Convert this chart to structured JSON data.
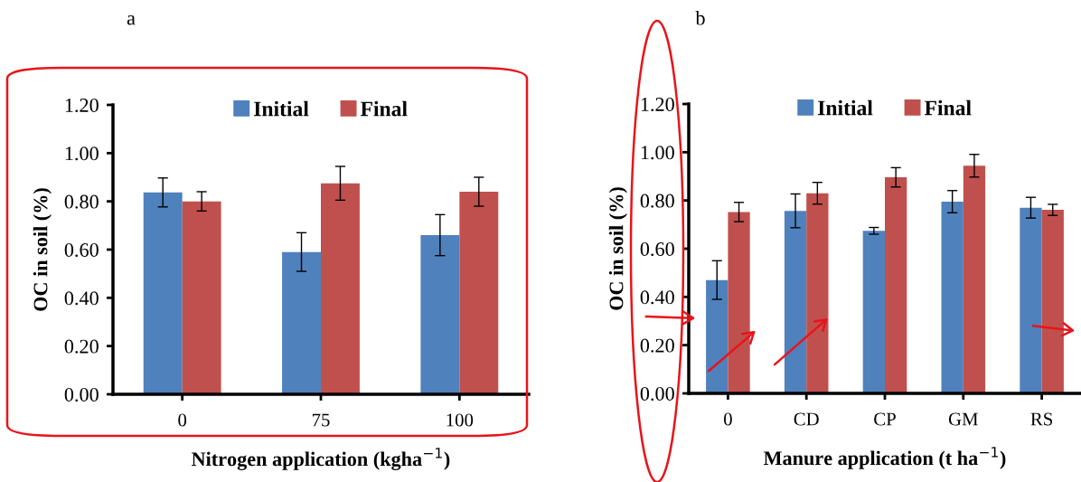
{
  "chart_data": [
    {
      "type": "bar",
      "title": "a",
      "xlabel": "Nitrogen application (kgha$^{−1}$)",
      "ylabel": "OC in soil (%)",
      "categories": [
        "0",
        "75",
        "100"
      ],
      "series": [
        {
          "name": "Initial",
          "color": "#4f81bd",
          "values": [
            0.837,
            0.59,
            0.66
          ],
          "errors": [
            0.06,
            0.08,
            0.085
          ]
        },
        {
          "name": "Final",
          "color": "#c0504d",
          "values": [
            0.8,
            0.875,
            0.84
          ],
          "errors": [
            0.04,
            0.07,
            0.06
          ]
        }
      ],
      "ylim": [
        0,
        1.2
      ],
      "yticks": [
        {
          "value": 0,
          "label": "0.00"
        },
        {
          "value": 0.2,
          "label": "0.20"
        },
        {
          "value": 0.4,
          "label": "0.40"
        },
        {
          "value": 0.6,
          "label": "0.60"
        },
        {
          "value": 0.8,
          "label": "0.80"
        },
        {
          "value": 1.0,
          "label": "1.00"
        },
        {
          "value": 1.2,
          "label": "1.20"
        }
      ],
      "legend": "top"
    },
    {
      "type": "bar",
      "title": "b",
      "xlabel": "Manure application (t ha$^{−1}$)",
      "ylabel": "OC in soil (%)",
      "categories": [
        "0",
        "CD",
        "CP",
        "GM",
        "RS"
      ],
      "series": [
        {
          "name": "Initial",
          "color": "#4f81bd",
          "values": [
            0.47,
            0.757,
            0.674,
            0.795,
            0.77
          ],
          "errors": [
            0.08,
            0.07,
            0.014,
            0.046,
            0.043
          ]
        },
        {
          "name": "Final",
          "color": "#c0504d",
          "values": [
            0.752,
            0.83,
            0.896,
            0.944,
            0.761
          ],
          "errors": [
            0.04,
            0.045,
            0.04,
            0.047,
            0.023
          ]
        }
      ],
      "ylim": [
        0,
        1.2
      ],
      "yticks": [
        {
          "value": 0,
          "label": "0.00"
        },
        {
          "value": 0.2,
          "label": "0.20"
        },
        {
          "value": 0.4,
          "label": "0.40"
        },
        {
          "value": 0.6,
          "label": "0.60"
        },
        {
          "value": 0.8,
          "label": "0.80"
        },
        {
          "value": 1.0,
          "label": "1.00"
        },
        {
          "value": 1.2,
          "label": "1.20"
        }
      ],
      "legend": "top"
    }
  ]
}
